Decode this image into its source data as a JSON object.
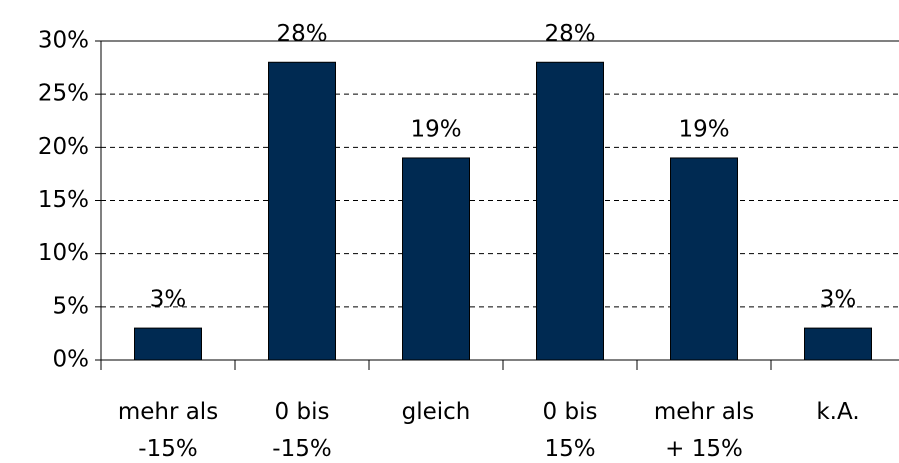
{
  "chart_data": {
    "type": "bar",
    "categories": [
      "mehr als\n-15%",
      "0 bis\n-15%",
      "gleich",
      "0 bis\n15%",
      "mehr als\n+ 15%",
      "k.A."
    ],
    "values": [
      3,
      28,
      19,
      28,
      19,
      3
    ],
    "value_labels": [
      "3%",
      "28%",
      "19%",
      "28%",
      "19%",
      "3%"
    ],
    "color": "#002a52",
    "ylim": [
      0,
      30
    ],
    "yticks": [
      {
        "value": 0,
        "label": "0%"
      },
      {
        "value": 5,
        "label": "5%"
      },
      {
        "value": 10,
        "label": "10%"
      },
      {
        "value": 15,
        "label": "15%"
      },
      {
        "value": 20,
        "label": "20%"
      },
      {
        "value": 25,
        "label": "25%"
      },
      {
        "value": 30,
        "label": "30%"
      }
    ],
    "grid": true
  }
}
